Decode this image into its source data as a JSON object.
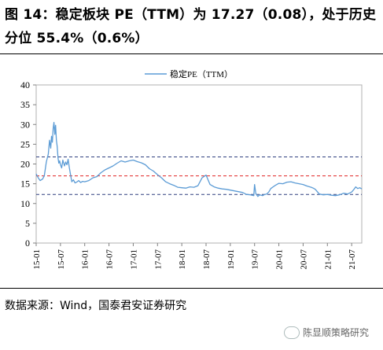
{
  "title": "图 14：稳定板块 PE（TTM）为 17.27（0.08），处于历史分位 55.4%（0.6%）",
  "source": "数据来源：Wind，国泰君安证券研究",
  "watermark": "陈显顺策略研究",
  "colors": {
    "series": "#5b9bd5",
    "mean_line": "#e02020",
    "band_line": "#2f3f7f",
    "axis": "#808080"
  },
  "chart_data": {
    "type": "line",
    "ylim": [
      0,
      40
    ],
    "y_ticks": [
      0,
      5,
      10,
      15,
      20,
      25,
      30,
      35,
      40
    ],
    "x_ticks": [
      "15-01",
      "15-07",
      "16-01",
      "16-07",
      "17-01",
      "17-07",
      "18-01",
      "18-07",
      "19-01",
      "19-07",
      "20-01",
      "20-07",
      "21-01",
      "21-07"
    ],
    "x_range": [
      0,
      80.5
    ],
    "legend": {
      "label": "稳定PE（TTM）",
      "position": "top-center"
    },
    "reference_lines": [
      {
        "value": 21.8,
        "style": "dashed"
      },
      {
        "value": 17.0,
        "style": "dashed"
      },
      {
        "value": 12.3,
        "style": "dashed"
      }
    ],
    "series": [
      {
        "name": "稳定PE（TTM）",
        "x": [
          0,
          0.5,
          1,
          1.6,
          2,
          2.5,
          3,
          3.3,
          3.6,
          3.8,
          4,
          4.2,
          4.4,
          4.6,
          4.8,
          5,
          5.2,
          5.4,
          5.6,
          5.8,
          6,
          6.3,
          6.6,
          7,
          7.3,
          7.6,
          7.9,
          8.2,
          8.5,
          8.8,
          9.2,
          9.6,
          10,
          10.5,
          11,
          11.5,
          12,
          13,
          14,
          15,
          16,
          17,
          18,
          19,
          20,
          21,
          22,
          23,
          24,
          25,
          26,
          27,
          28,
          29,
          30,
          31,
          32,
          33,
          34,
          35,
          36,
          37,
          38,
          39,
          40,
          41,
          42,
          43,
          44,
          45,
          46,
          47,
          48,
          49,
          50,
          51,
          52,
          53,
          53.8,
          54,
          54.3,
          54.8,
          55.3,
          56,
          56.5,
          57,
          57.5,
          58,
          59,
          60,
          61,
          62,
          63,
          64,
          65,
          66,
          67,
          68,
          68.5,
          69,
          70,
          71,
          72,
          73,
          74,
          75,
          76,
          77,
          78,
          78.5,
          79,
          79.5,
          80,
          80.5
        ],
        "values": [
          17.5,
          16.5,
          15.8,
          16.2,
          17.0,
          20.5,
          22.5,
          26.0,
          24.0,
          27.0,
          25.5,
          29.0,
          30.5,
          27.5,
          29.8,
          26.0,
          24.5,
          21.5,
          20.2,
          20.8,
          19.8,
          19.0,
          21.0,
          19.5,
          20.5,
          19.8,
          21.2,
          19.0,
          17.3,
          15.5,
          16.0,
          15.2,
          15.4,
          15.8,
          15.3,
          15.6,
          15.5,
          15.8,
          16.5,
          16.8,
          17.8,
          18.5,
          19.0,
          19.5,
          20.2,
          20.8,
          20.5,
          20.8,
          21.0,
          20.6,
          20.3,
          19.8,
          18.8,
          18.2,
          17.3,
          16.5,
          15.5,
          15.0,
          14.6,
          14.1,
          14.0,
          13.9,
          14.2,
          14.1,
          14.5,
          16.5,
          17.2,
          14.8,
          14.2,
          13.9,
          13.7,
          13.6,
          13.4,
          13.2,
          13.0,
          12.8,
          12.3,
          12.2,
          12.0,
          14.8,
          12.5,
          11.8,
          12.2,
          12.0,
          12.3,
          12.4,
          12.9,
          13.8,
          14.5,
          15.1,
          15.0,
          15.4,
          15.5,
          15.2,
          15.0,
          14.8,
          14.4,
          14.1,
          13.9,
          13.6,
          12.4,
          12.2,
          12.3,
          12.1,
          12.0,
          12.2,
          12.6,
          12.4,
          12.9,
          13.5,
          14.2,
          13.8,
          14.0,
          13.7
        ]
      }
    ]
  }
}
